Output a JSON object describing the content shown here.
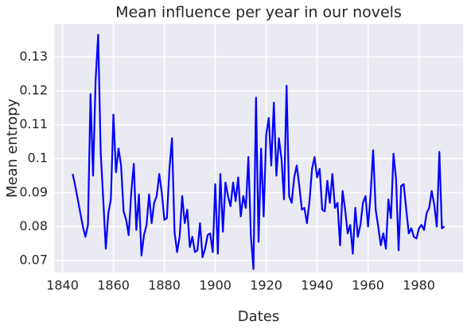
{
  "chart_data": {
    "type": "line",
    "title": "Mean influence per year in our novels",
    "x_label": "Dates",
    "y_label": "Mean entropy",
    "color": "#0000ff",
    "grid": true,
    "x": [
      1844,
      1845,
      1846,
      1847,
      1848,
      1849,
      1850,
      1851,
      1852,
      1853,
      1854,
      1855,
      1856,
      1857,
      1858,
      1859,
      1860,
      1861,
      1862,
      1863,
      1864,
      1865,
      1866,
      1867,
      1868,
      1869,
      1870,
      1871,
      1872,
      1873,
      1874,
      1875,
      1876,
      1877,
      1878,
      1879,
      1880,
      1881,
      1882,
      1883,
      1884,
      1885,
      1886,
      1887,
      1888,
      1889,
      1890,
      1891,
      1892,
      1893,
      1894,
      1895,
      1896,
      1897,
      1898,
      1899,
      1900,
      1901,
      1902,
      1903,
      1904,
      1905,
      1906,
      1907,
      1908,
      1909,
      1910,
      1911,
      1912,
      1913,
      1914,
      1915,
      1916,
      1917,
      1918,
      1919,
      1920,
      1921,
      1922,
      1923,
      1924,
      1925,
      1926,
      1927,
      1928,
      1929,
      1930,
      1931,
      1932,
      1933,
      1934,
      1935,
      1936,
      1937,
      1938,
      1939,
      1940,
      1941,
      1942,
      1943,
      1944,
      1945,
      1946,
      1947,
      1948,
      1949,
      1950,
      1951,
      1952,
      1953,
      1954,
      1955,
      1956,
      1957,
      1958,
      1959,
      1960,
      1961,
      1962,
      1963,
      1964,
      1965,
      1966,
      1967,
      1968,
      1969,
      1970,
      1971,
      1972,
      1973,
      1974,
      1975,
      1976,
      1977,
      1978,
      1979,
      1980,
      1981,
      1982,
      1983,
      1984,
      1985,
      1986,
      1987,
      1988,
      1989,
      1990
    ],
    "values": [
      0.0955,
      0.092,
      0.088,
      0.084,
      0.08,
      0.077,
      0.0805,
      0.119,
      0.095,
      0.123,
      0.1365,
      0.102,
      0.088,
      0.0735,
      0.084,
      0.088,
      0.113,
      0.096,
      0.103,
      0.098,
      0.0845,
      0.082,
      0.0775,
      0.09,
      0.0985,
      0.079,
      0.0895,
      0.0715,
      0.0775,
      0.0805,
      0.0895,
      0.081,
      0.087,
      0.089,
      0.0955,
      0.09,
      0.082,
      0.0825,
      0.097,
      0.106,
      0.0785,
      0.0725,
      0.077,
      0.089,
      0.081,
      0.085,
      0.074,
      0.077,
      0.0725,
      0.073,
      0.081,
      0.071,
      0.0735,
      0.0775,
      0.078,
      0.0725,
      0.0925,
      0.072,
      0.0955,
      0.0785,
      0.093,
      0.089,
      0.086,
      0.093,
      0.0875,
      0.0945,
      0.083,
      0.089,
      0.0855,
      0.1005,
      0.077,
      0.0675,
      0.118,
      0.0755,
      0.103,
      0.083,
      0.107,
      0.112,
      0.098,
      0.1165,
      0.095,
      0.106,
      0.1,
      0.088,
      0.1215,
      0.089,
      0.087,
      0.0945,
      0.098,
      0.092,
      0.085,
      0.0855,
      0.081,
      0.0875,
      0.097,
      0.1005,
      0.0945,
      0.097,
      0.085,
      0.0845,
      0.0935,
      0.087,
      0.0955,
      0.0855,
      0.087,
      0.0745,
      0.0905,
      0.085,
      0.078,
      0.0805,
      0.072,
      0.0855,
      0.077,
      0.0805,
      0.087,
      0.089,
      0.08,
      0.0895,
      0.1025,
      0.085,
      0.08,
      0.0745,
      0.078,
      0.0735,
      0.088,
      0.0825,
      0.1015,
      0.094,
      0.073,
      0.092,
      0.0925,
      0.085,
      0.078,
      0.0795,
      0.077,
      0.0765,
      0.0795,
      0.0805,
      0.079,
      0.084,
      0.0855,
      0.0905,
      0.0865,
      0.08,
      0.102,
      0.0795,
      0.08
    ],
    "xlim": [
      1836.7,
      1997.3
    ],
    "xticks": [
      1840,
      1860,
      1880,
      1900,
      1920,
      1940,
      1960,
      1980
    ],
    "ylim": [
      0.0665,
      0.1397
    ],
    "yticks": [
      0.07,
      0.08,
      0.09,
      0.1,
      0.11,
      0.12,
      0.13
    ]
  }
}
